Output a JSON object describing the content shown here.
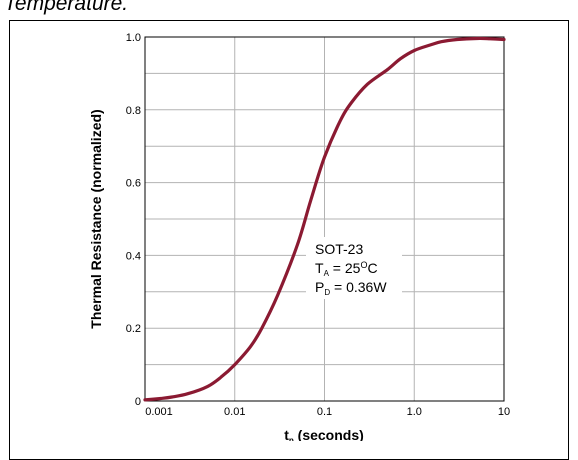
{
  "caption": "Temperature.",
  "chart_data": {
    "type": "line",
    "title": "",
    "xlabel_main": "t",
    "xlabel_sub": "p",
    "xlabel_rest": " (seconds)",
    "ylabel": "Thermal Resistance (normalized)",
    "x_scale": "log",
    "xlim": [
      0.001,
      10
    ],
    "ylim": [
      0,
      1.0
    ],
    "grid": true,
    "x_ticks": [
      {
        "value": 0.001,
        "label": "0.001"
      },
      {
        "value": 0.01,
        "label": "0.01"
      },
      {
        "value": 0.1,
        "label": "0.1"
      },
      {
        "value": 1,
        "label": "1.0"
      },
      {
        "value": 10,
        "label": "10"
      }
    ],
    "y_ticks": [
      {
        "value": 0,
        "label": "0"
      },
      {
        "value": 0.2,
        "label": "0.2"
      },
      {
        "value": 0.4,
        "label": "0.4"
      },
      {
        "value": 0.6,
        "label": "0.6"
      },
      {
        "value": 0.8,
        "label": "0.8"
      },
      {
        "value": 1.0,
        "label": "1.0"
      }
    ],
    "series": [
      {
        "color": "#8b1a32",
        "x": [
          0.001,
          0.0015,
          0.002,
          0.003,
          0.005,
          0.007,
          0.01,
          0.015,
          0.02,
          0.03,
          0.05,
          0.07,
          0.1,
          0.15,
          0.2,
          0.3,
          0.5,
          0.7,
          1,
          1.5,
          2,
          3,
          5,
          7,
          10
        ],
        "y": [
          0.003,
          0.007,
          0.011,
          0.02,
          0.04,
          0.065,
          0.1,
          0.15,
          0.2,
          0.29,
          0.43,
          0.55,
          0.67,
          0.77,
          0.82,
          0.87,
          0.91,
          0.94,
          0.963,
          0.978,
          0.987,
          0.993,
          0.996,
          0.995,
          0.993
        ]
      }
    ],
    "annotation": {
      "line1": "SOT-23",
      "line2_main": "T",
      "line2_sub": "A",
      "line2_rest": " = 25",
      "line2_sup": "O",
      "line2_end": "C",
      "line3_main": "P",
      "line3_sub": "D",
      "line3_rest": " = 0.36W"
    }
  }
}
